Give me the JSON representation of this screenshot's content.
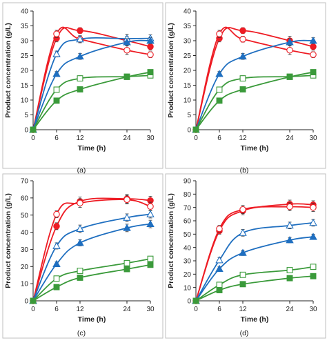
{
  "colors": {
    "red": "#ee1c24",
    "blue": "#1f6fc0",
    "green": "#3a9a3a",
    "axis": "#222222",
    "frame": "#bfbfbf"
  },
  "chart_data": [
    {
      "type": "line",
      "panel_label": "(a)",
      "xlabel": "Time (h)",
      "ylabel": "Product concentration (g/L)",
      "xlim": [
        0,
        30
      ],
      "ylim": [
        0,
        40
      ],
      "x_ticks": [
        0,
        6,
        12,
        24,
        30
      ],
      "y_ticks": [
        0,
        5,
        10,
        15,
        20,
        25,
        30,
        35,
        40
      ],
      "x_tick_labels": [
        "0",
        "6",
        "12",
        "24",
        "30"
      ],
      "y_tick_labels": [
        "0",
        "5",
        "10",
        "15",
        "20",
        "25",
        "30",
        "35",
        "40"
      ],
      "x": [
        0,
        6,
        12,
        24,
        30
      ],
      "series": [
        {
          "marker": "circle",
          "filled": true,
          "color": "red",
          "values": [
            0,
            30.8,
            33.4,
            30.0,
            28.0
          ],
          "errors": [
            0,
            1.2,
            1.0,
            1.5,
            1.2
          ]
        },
        {
          "marker": "circle",
          "filled": false,
          "color": "red",
          "values": [
            0,
            32.3,
            30.5,
            26.8,
            25.3
          ],
          "errors": [
            0,
            1.2,
            1.0,
            1.5,
            1.0
          ]
        },
        {
          "marker": "triangle",
          "filled": false,
          "color": "blue",
          "values": [
            0,
            25.5,
            30.5,
            30.7,
            30.8
          ],
          "errors": [
            0,
            1.0,
            1.2,
            1.5,
            1.2
          ]
        },
        {
          "marker": "triangle",
          "filled": true,
          "color": "blue",
          "values": [
            0,
            18.8,
            24.7,
            29.5,
            30.0
          ],
          "errors": [
            0,
            0.8,
            1.0,
            1.2,
            1.0
          ]
        },
        {
          "marker": "square",
          "filled": false,
          "color": "green",
          "values": [
            0,
            13.5,
            17.3,
            17.9,
            18.3
          ],
          "errors": [
            0,
            0.8,
            0.9,
            0.8,
            0.8
          ]
        },
        {
          "marker": "square",
          "filled": true,
          "color": "green",
          "values": [
            0,
            9.8,
            13.6,
            17.8,
            19.4
          ],
          "errors": [
            0,
            0.6,
            0.6,
            0.7,
            0.7
          ]
        }
      ]
    },
    {
      "type": "line",
      "panel_label": "(b)",
      "xlabel": "Time (h)",
      "ylabel": "Product concentration (g/L)",
      "xlim": [
        0,
        30
      ],
      "ylim": [
        0,
        40
      ],
      "x_ticks": [
        0,
        6,
        12,
        24,
        30
      ],
      "y_ticks": [
        0,
        5,
        10,
        15,
        20,
        25,
        30,
        35,
        40
      ],
      "x_tick_labels": [
        "0",
        "6",
        "12",
        "24",
        "30"
      ],
      "y_tick_labels": [
        "0",
        "5",
        "10",
        "15",
        "20",
        "25",
        "30",
        "35",
        "40"
      ],
      "x": [
        0,
        6,
        12,
        24,
        30
      ],
      "series": [
        {
          "marker": "circle",
          "filled": true,
          "color": "red",
          "values": [
            0,
            30.8,
            33.4,
            30.0,
            28.0
          ],
          "errors": [
            0,
            1.2,
            1.0,
            1.5,
            1.2
          ]
        },
        {
          "marker": "circle",
          "filled": false,
          "color": "red",
          "values": [
            0,
            32.3,
            30.5,
            26.8,
            25.3
          ],
          "errors": [
            0,
            1.2,
            1.0,
            1.5,
            1.0
          ]
        },
        {
          "marker": "triangle",
          "filled": true,
          "color": "blue",
          "values": [
            0,
            18.8,
            24.7,
            29.5,
            30.0
          ],
          "errors": [
            0,
            0.8,
            1.0,
            1.2,
            1.0
          ]
        },
        {
          "marker": "square",
          "filled": false,
          "color": "green",
          "values": [
            0,
            13.5,
            17.3,
            17.9,
            18.3
          ],
          "errors": [
            0,
            0.8,
            0.9,
            0.8,
            0.8
          ]
        },
        {
          "marker": "square",
          "filled": true,
          "color": "green",
          "values": [
            0,
            9.8,
            13.6,
            17.8,
            19.4
          ],
          "errors": [
            0,
            0.6,
            0.6,
            0.7,
            0.7
          ]
        }
      ]
    },
    {
      "type": "line",
      "panel_label": "(c)",
      "xlabel": "Time (h)",
      "ylabel": "Product concentration (g/L)",
      "xlim": [
        0,
        30
      ],
      "ylim": [
        0,
        70
      ],
      "x_ticks": [
        0,
        6,
        12,
        24,
        30
      ],
      "y_ticks": [
        0,
        10,
        20,
        30,
        40,
        50,
        60,
        70
      ],
      "x_tick_labels": [
        "0",
        "6",
        "12",
        "24",
        "30"
      ],
      "y_tick_labels": [
        "0",
        "10",
        "20",
        "30",
        "40",
        "50",
        "60",
        "70"
      ],
      "x": [
        0,
        6,
        12,
        24,
        30
      ],
      "series": [
        {
          "marker": "circle",
          "filled": true,
          "color": "red",
          "values": [
            0,
            43.5,
            58.0,
            59.5,
            58.5
          ],
          "errors": [
            0,
            2.0,
            2.5,
            2.5,
            2.5
          ]
        },
        {
          "marker": "circle",
          "filled": false,
          "color": "red",
          "values": [
            0,
            50.5,
            57.0,
            59.0,
            55.0
          ],
          "errors": [
            0,
            2.0,
            2.5,
            2.5,
            2.5
          ]
        },
        {
          "marker": "triangle",
          "filled": false,
          "color": "blue",
          "values": [
            0,
            32.0,
            42.0,
            48.5,
            50.5
          ],
          "errors": [
            0,
            1.8,
            2.2,
            2.2,
            2.2
          ]
        },
        {
          "marker": "triangle",
          "filled": true,
          "color": "blue",
          "values": [
            0,
            21.5,
            33.8,
            42.5,
            44.8
          ],
          "errors": [
            0,
            1.2,
            1.8,
            2.2,
            2.2
          ]
        },
        {
          "marker": "square",
          "filled": false,
          "color": "green",
          "values": [
            0,
            13.0,
            17.5,
            22.0,
            24.5
          ],
          "errors": [
            0,
            1.0,
            1.2,
            1.2,
            1.2
          ]
        },
        {
          "marker": "square",
          "filled": true,
          "color": "green",
          "values": [
            0,
            8.0,
            13.5,
            18.5,
            21.0
          ],
          "errors": [
            0,
            0.8,
            0.8,
            1.0,
            1.0
          ]
        }
      ]
    },
    {
      "type": "line",
      "panel_label": "(d)",
      "xlabel": "Time (h)",
      "ylabel": "Product concentration (g/L)",
      "xlim": [
        0,
        30
      ],
      "ylim": [
        0,
        90
      ],
      "x_ticks": [
        0,
        6,
        12,
        24,
        30
      ],
      "y_ticks": [
        0,
        10,
        20,
        30,
        40,
        50,
        60,
        70,
        80,
        90
      ],
      "x_tick_labels": [
        "0",
        "6",
        "12",
        "24",
        "30"
      ],
      "y_tick_labels": [
        "0",
        "10",
        "20",
        "30",
        "40",
        "50",
        "60",
        "70",
        "80",
        "90"
      ],
      "x": [
        0,
        6,
        12,
        24,
        30
      ],
      "series": [
        {
          "marker": "circle",
          "filled": true,
          "color": "red",
          "values": [
            0,
            52.5,
            67.5,
            72.5,
            72.0
          ],
          "errors": [
            0,
            2.5,
            3.0,
            3.0,
            3.0
          ]
        },
        {
          "marker": "circle",
          "filled": false,
          "color": "red",
          "values": [
            0,
            54.0,
            68.5,
            70.5,
            70.0
          ],
          "errors": [
            0,
            2.5,
            3.0,
            3.0,
            3.0
          ]
        },
        {
          "marker": "triangle",
          "filled": false,
          "color": "blue",
          "values": [
            0,
            30.5,
            51.0,
            56.5,
            58.5
          ],
          "errors": [
            0,
            2.0,
            2.5,
            2.5,
            2.5
          ]
        },
        {
          "marker": "triangle",
          "filled": true,
          "color": "blue",
          "values": [
            0,
            24.0,
            36.0,
            45.5,
            48.0
          ],
          "errors": [
            0,
            1.5,
            2.0,
            2.0,
            2.0
          ]
        },
        {
          "marker": "square",
          "filled": false,
          "color": "green",
          "values": [
            0,
            12.0,
            19.5,
            23.0,
            25.5
          ],
          "errors": [
            0,
            1.0,
            1.2,
            1.2,
            1.5
          ]
        },
        {
          "marker": "square",
          "filled": true,
          "color": "green",
          "values": [
            0,
            8.0,
            12.5,
            17.0,
            18.5
          ],
          "errors": [
            0,
            0.8,
            0.8,
            1.0,
            1.0
          ]
        }
      ]
    }
  ]
}
